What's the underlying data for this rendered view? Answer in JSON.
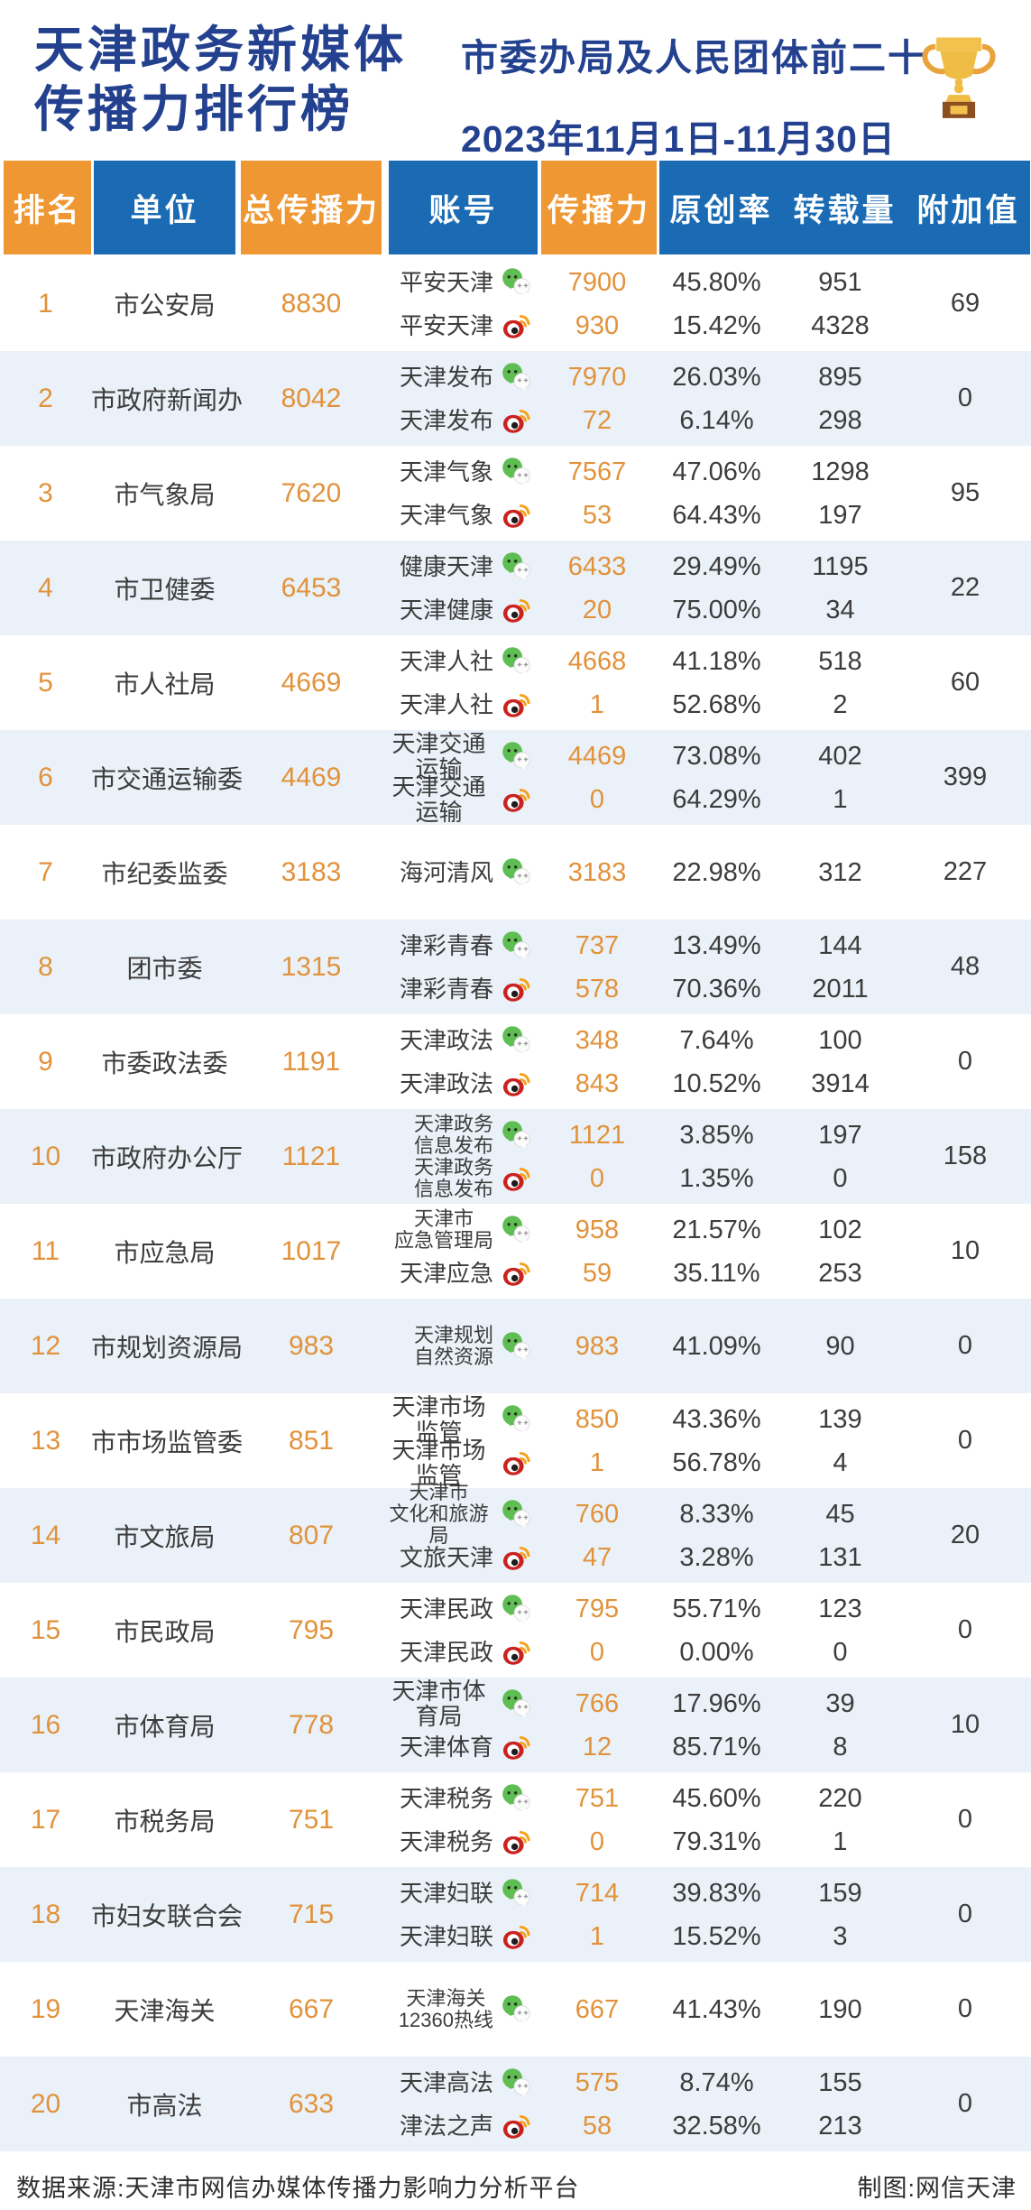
{
  "header": {
    "title": "天津政务新媒体\n传播力排行榜",
    "subtitle": "市委办局及人民团体前二十",
    "date_range": "2023年11月1日-11月30日",
    "trophy_icon": "trophy-icon"
  },
  "colors": {
    "orange_block": "#EE9733",
    "blue_block": "#1A6BB4",
    "title_navy": "#23418F",
    "value_orange": "#E2923B",
    "text_dark": "#3C3C3C",
    "row_alt_bg": "#EAF1F8",
    "wechat_green": "#5FBE53",
    "weibo_red": "#C9221F"
  },
  "footer": {
    "source": "数据来源:天津市网信办媒体传播力影响力分析平台",
    "credit": "制图:网信天津"
  },
  "chart_data": {
    "type": "table",
    "title": "天津政务新媒体传播力排行榜",
    "subtitle": "市委办局及人民团体前二十",
    "period": "2023年11月1日-11月30日",
    "columns": [
      "排名",
      "单位",
      "总传播力",
      "账号",
      "传播力",
      "原创率",
      "转载量",
      "附加值"
    ],
    "platform_legend": {
      "wechat": "微信公众号",
      "weibo": "微博"
    },
    "rows": [
      {
        "rank": 1,
        "unit": "市公安局",
        "total": 8830,
        "extra": 69,
        "accounts": [
          {
            "name": "平安天津",
            "platform": "wechat",
            "value": 7900,
            "rate": "45.80%",
            "repost": 951
          },
          {
            "name": "平安天津",
            "platform": "weibo",
            "value": 930,
            "rate": "15.42%",
            "repost": 4328
          }
        ]
      },
      {
        "rank": 2,
        "unit": "市政府新闻办",
        "total": 8042,
        "extra": 0,
        "accounts": [
          {
            "name": "天津发布",
            "platform": "wechat",
            "value": 7970,
            "rate": "26.03%",
            "repost": 895
          },
          {
            "name": "天津发布",
            "platform": "weibo",
            "value": 72,
            "rate": "6.14%",
            "repost": 298
          }
        ]
      },
      {
        "rank": 3,
        "unit": "市气象局",
        "total": 7620,
        "extra": 95,
        "accounts": [
          {
            "name": "天津气象",
            "platform": "wechat",
            "value": 7567,
            "rate": "47.06%",
            "repost": 1298
          },
          {
            "name": "天津气象",
            "platform": "weibo",
            "value": 53,
            "rate": "64.43%",
            "repost": 197
          }
        ]
      },
      {
        "rank": 4,
        "unit": "市卫健委",
        "total": 6453,
        "extra": 22,
        "accounts": [
          {
            "name": "健康天津",
            "platform": "wechat",
            "value": 6433,
            "rate": "29.49%",
            "repost": 1195
          },
          {
            "name": "天津健康",
            "platform": "weibo",
            "value": 20,
            "rate": "75.00%",
            "repost": 34
          }
        ]
      },
      {
        "rank": 5,
        "unit": "市人社局",
        "total": 4669,
        "extra": 60,
        "accounts": [
          {
            "name": "天津人社",
            "platform": "wechat",
            "value": 4668,
            "rate": "41.18%",
            "repost": 518
          },
          {
            "name": "天津人社",
            "platform": "weibo",
            "value": 1,
            "rate": "52.68%",
            "repost": 2
          }
        ]
      },
      {
        "rank": 6,
        "unit": "市交通运输委",
        "total": 4469,
        "extra": 399,
        "accounts": [
          {
            "name": "天津交通运输",
            "platform": "wechat",
            "value": 4469,
            "rate": "73.08%",
            "repost": 402
          },
          {
            "name": "天津交通运输",
            "platform": "weibo",
            "value": 0,
            "rate": "64.29%",
            "repost": 1
          }
        ]
      },
      {
        "rank": 7,
        "unit": "市纪委监委",
        "total": 3183,
        "extra": 227,
        "accounts": [
          {
            "name": "海河清风",
            "platform": "wechat",
            "value": 3183,
            "rate": "22.98%",
            "repost": 312
          }
        ]
      },
      {
        "rank": 8,
        "unit": "团市委",
        "total": 1315,
        "extra": 48,
        "accounts": [
          {
            "name": "津彩青春",
            "platform": "wechat",
            "value": 737,
            "rate": "13.49%",
            "repost": 144
          },
          {
            "name": "津彩青春",
            "platform": "weibo",
            "value": 578,
            "rate": "70.36%",
            "repost": 2011
          }
        ]
      },
      {
        "rank": 9,
        "unit": "市委政法委",
        "total": 1191,
        "extra": 0,
        "accounts": [
          {
            "name": "天津政法",
            "platform": "wechat",
            "value": 348,
            "rate": "7.64%",
            "repost": 100
          },
          {
            "name": "天津政法",
            "platform": "weibo",
            "value": 843,
            "rate": "10.52%",
            "repost": 3914
          }
        ]
      },
      {
        "rank": 10,
        "unit": "市政府办公厅",
        "total": 1121,
        "extra": 158,
        "accounts": [
          {
            "name": "天津政务\n信息发布",
            "platform": "wechat",
            "value": 1121,
            "rate": "3.85%",
            "repost": 197
          },
          {
            "name": "天津政务\n信息发布",
            "platform": "weibo",
            "value": 0,
            "rate": "1.35%",
            "repost": 0
          }
        ]
      },
      {
        "rank": 11,
        "unit": "市应急局",
        "total": 1017,
        "extra": 10,
        "accounts": [
          {
            "name": "天津市\n应急管理局",
            "platform": "wechat",
            "value": 958,
            "rate": "21.57%",
            "repost": 102
          },
          {
            "name": "天津应急",
            "platform": "weibo",
            "value": 59,
            "rate": "35.11%",
            "repost": 253
          }
        ]
      },
      {
        "rank": 12,
        "unit": "市规划资源局",
        "total": 983,
        "extra": 0,
        "accounts": [
          {
            "name": "天津规划\n自然资源",
            "platform": "wechat",
            "value": 983,
            "rate": "41.09%",
            "repost": 90
          }
        ]
      },
      {
        "rank": 13,
        "unit": "市市场监管委",
        "total": 851,
        "extra": 0,
        "accounts": [
          {
            "name": "天津市场监管",
            "platform": "wechat",
            "value": 850,
            "rate": "43.36%",
            "repost": 139
          },
          {
            "name": "天津市场监管",
            "platform": "weibo",
            "value": 1,
            "rate": "56.78%",
            "repost": 4
          }
        ]
      },
      {
        "rank": 14,
        "unit": "市文旅局",
        "total": 807,
        "extra": 20,
        "accounts": [
          {
            "name": "天津市\n文化和旅游局",
            "platform": "wechat",
            "value": 760,
            "rate": "8.33%",
            "repost": 45
          },
          {
            "name": "文旅天津",
            "platform": "weibo",
            "value": 47,
            "rate": "3.28%",
            "repost": 131
          }
        ]
      },
      {
        "rank": 15,
        "unit": "市民政局",
        "total": 795,
        "extra": 0,
        "accounts": [
          {
            "name": "天津民政",
            "platform": "wechat",
            "value": 795,
            "rate": "55.71%",
            "repost": 123
          },
          {
            "name": "天津民政",
            "platform": "weibo",
            "value": 0,
            "rate": "0.00%",
            "repost": 0
          }
        ]
      },
      {
        "rank": 16,
        "unit": "市体育局",
        "total": 778,
        "extra": 10,
        "accounts": [
          {
            "name": "天津市体育局",
            "platform": "wechat",
            "value": 766,
            "rate": "17.96%",
            "repost": 39
          },
          {
            "name": "天津体育",
            "platform": "weibo",
            "value": 12,
            "rate": "85.71%",
            "repost": 8
          }
        ]
      },
      {
        "rank": 17,
        "unit": "市税务局",
        "total": 751,
        "extra": 0,
        "accounts": [
          {
            "name": "天津税务",
            "platform": "wechat",
            "value": 751,
            "rate": "45.60%",
            "repost": 220
          },
          {
            "name": "天津税务",
            "platform": "weibo",
            "value": 0,
            "rate": "79.31%",
            "repost": 1
          }
        ]
      },
      {
        "rank": 18,
        "unit": "市妇女联合会",
        "total": 715,
        "extra": 0,
        "accounts": [
          {
            "name": "天津妇联",
            "platform": "wechat",
            "value": 714,
            "rate": "39.83%",
            "repost": 159
          },
          {
            "name": "天津妇联",
            "platform": "weibo",
            "value": 1,
            "rate": "15.52%",
            "repost": 3
          }
        ]
      },
      {
        "rank": 19,
        "unit": "天津海关",
        "total": 667,
        "extra": 0,
        "accounts": [
          {
            "name": "天津海关\n12360热线",
            "platform": "wechat",
            "value": 667,
            "rate": "41.43%",
            "repost": 190
          }
        ]
      },
      {
        "rank": 20,
        "unit": "市高法",
        "total": 633,
        "extra": 0,
        "accounts": [
          {
            "name": "天津高法",
            "platform": "wechat",
            "value": 575,
            "rate": "8.74%",
            "repost": 155
          },
          {
            "name": "津法之声",
            "platform": "weibo",
            "value": 58,
            "rate": "32.58%",
            "repost": 213
          }
        ]
      }
    ]
  }
}
